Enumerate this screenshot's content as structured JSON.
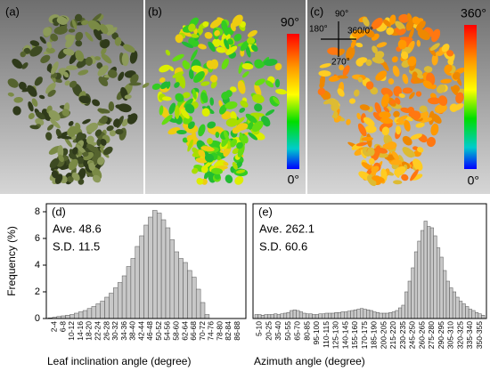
{
  "panels": [
    {
      "label": "(a)"
    },
    {
      "label": "(b)",
      "colorbar": {
        "max": "90°",
        "min": "0°"
      }
    },
    {
      "label": "(c)",
      "colorbar": {
        "max": "360°",
        "min": "0°"
      },
      "compass": [
        "90°",
        "180°",
        "360/0°",
        "270°"
      ]
    }
  ],
  "chart_data": [
    {
      "type": "bar",
      "panel_label": "(d)",
      "annotations": [
        "Ave. 48.6",
        "S.D. 11.5"
      ],
      "x_label": "Leaf inclination angle (degree)",
      "y_label": "Frequency (%)",
      "color": "#c8c8c8",
      "categories": [
        null,
        "2-4",
        null,
        "6-8",
        null,
        "10-12",
        null,
        "14-16",
        null,
        "18-20",
        null,
        "22-24",
        null,
        "26-28",
        null,
        "30-32",
        null,
        "34-36",
        null,
        "38-40",
        null,
        "42-44",
        null,
        "46-48",
        null,
        "50-52",
        null,
        "54-56",
        null,
        "58-60",
        null,
        "62-64",
        null,
        "66-68",
        null,
        "70-72",
        null,
        "74-76",
        null,
        "78-80",
        null,
        "82-84",
        null,
        "86-88",
        null
      ],
      "values": [
        0.05,
        0.1,
        0.15,
        0.2,
        0.25,
        0.3,
        0.4,
        0.5,
        0.6,
        0.75,
        0.9,
        1.1,
        1.3,
        1.6,
        1.9,
        2.3,
        2.7,
        3.2,
        3.9,
        4.5,
        5.4,
        6.2,
        7.0,
        7.6,
        8.1,
        7.9,
        7.4,
        6.8,
        5.9,
        5.0,
        4.5,
        4.2,
        3.6,
        3.1,
        2.2,
        1.2,
        0.3,
        0,
        0,
        0,
        0,
        0,
        0,
        0,
        0
      ],
      "ylim": [
        0,
        8.6
      ],
      "yticks": [
        0,
        2,
        4,
        6,
        8
      ]
    },
    {
      "type": "bar",
      "panel_label": "(e)",
      "annotations": [
        "Ave. 262.1",
        "S.D. 60.6"
      ],
      "x_label": "Azimuth angle (degree)",
      "color": "#c8c8c8",
      "categories": [
        null,
        "5-10",
        null,
        null,
        "20-25",
        null,
        null,
        "35-40",
        null,
        null,
        "50-55",
        null,
        null,
        "65-70",
        null,
        null,
        "80-85",
        null,
        null,
        "95-100",
        null,
        null,
        "110-115",
        null,
        null,
        "125-130",
        null,
        null,
        "140-145",
        null,
        null,
        "155-160",
        null,
        null,
        "170-175",
        null,
        null,
        "185-190",
        null,
        null,
        "200-205",
        null,
        null,
        "215-220",
        null,
        null,
        "230-235",
        null,
        null,
        "245-250",
        null,
        null,
        "260-265",
        null,
        null,
        "275-280",
        null,
        null,
        "290-295",
        null,
        null,
        "305-310",
        null,
        null,
        "320-325",
        null,
        null,
        "335-340",
        null,
        null,
        "350-355",
        null
      ],
      "values": [
        0.3,
        0.3,
        0.25,
        0.3,
        0.3,
        0.3,
        0.35,
        0.3,
        0.35,
        0.4,
        0.45,
        0.6,
        0.65,
        0.6,
        0.5,
        0.4,
        0.35,
        0.35,
        0.3,
        0.3,
        0.35,
        0.35,
        0.4,
        0.4,
        0.4,
        0.45,
        0.45,
        0.5,
        0.5,
        0.55,
        0.6,
        0.65,
        0.7,
        0.75,
        0.7,
        0.65,
        0.6,
        0.5,
        0.45,
        0.4,
        0.4,
        0.4,
        0.45,
        0.5,
        0.6,
        0.8,
        1.0,
        2.0,
        2.8,
        3.8,
        5.0,
        5.8,
        6.6,
        7.3,
        6.9,
        6.8,
        6.2,
        5.3,
        4.6,
        3.6,
        2.8,
        2.3,
        2.0,
        1.6,
        1.3,
        1.1,
        0.9,
        0.7,
        0.6,
        0.45,
        0.35,
        0.25
      ],
      "ylim": [
        0,
        8.6
      ]
    }
  ]
}
